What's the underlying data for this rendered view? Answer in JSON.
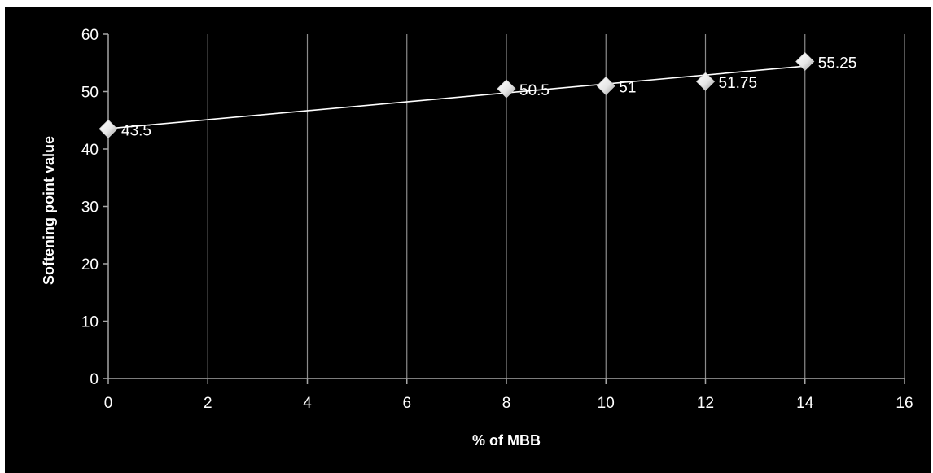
{
  "chart_data": {
    "type": "line",
    "title": "",
    "xlabel": "% of MBB",
    "ylabel": "Softening point value",
    "xlim": [
      0,
      16
    ],
    "ylim": [
      0,
      60
    ],
    "xticks": [
      0,
      2,
      4,
      6,
      8,
      10,
      12,
      14,
      16
    ],
    "yticks": [
      0,
      10,
      20,
      30,
      40,
      50,
      60
    ],
    "xtick_labels": [
      "0",
      "2",
      "4",
      "6",
      "8",
      "10",
      "12",
      "14",
      "16"
    ],
    "ytick_labels": [
      "0",
      "10",
      "20",
      "30",
      "40",
      "50",
      "60"
    ],
    "grid": "vertical",
    "legend": "none",
    "series": [
      {
        "x": [
          0,
          8,
          10,
          12,
          14
        ],
        "y": [
          43.5,
          50.5,
          51,
          51.75,
          55.25
        ],
        "data_labels": [
          "43.5",
          "50.5",
          "51",
          "51.75",
          "55.25"
        ],
        "marker": "diamond",
        "color": "#ffffff",
        "trendline": "linear"
      }
    ],
    "colors": {
      "background": "#000000",
      "gridline": "#8c8c8c",
      "axis": "#a6a6a6",
      "text": "#ffffff",
      "line": "#ffffff"
    }
  }
}
